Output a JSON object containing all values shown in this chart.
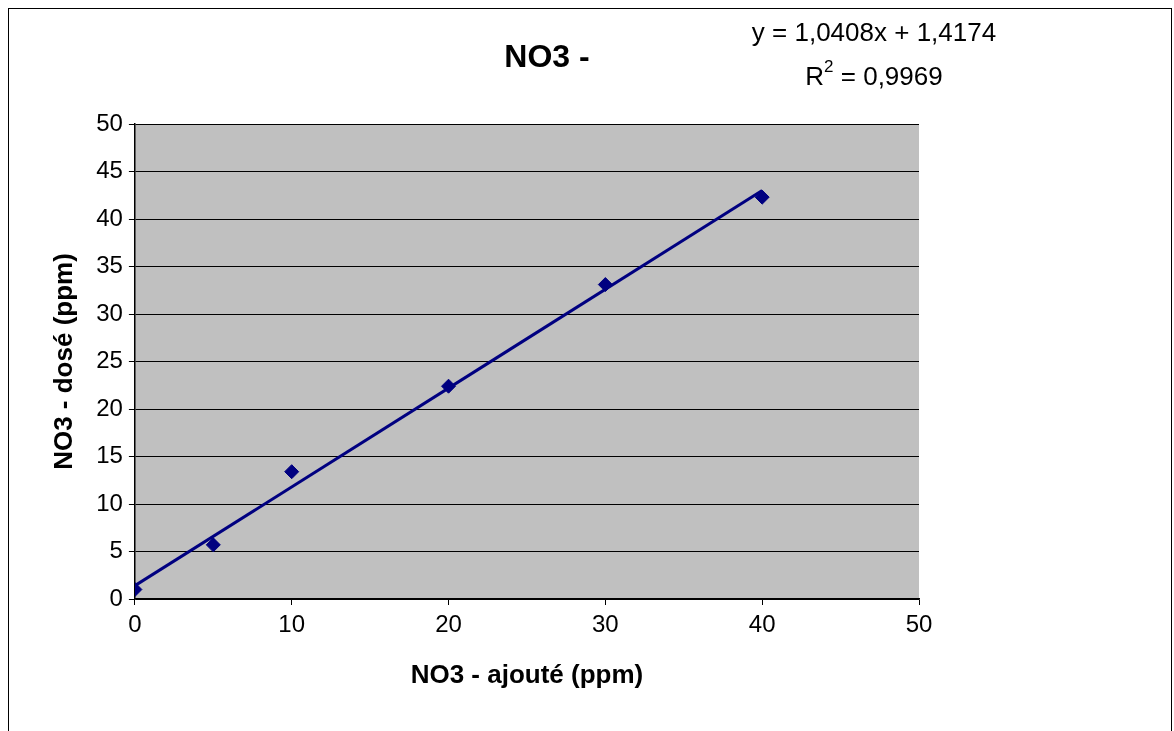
{
  "chart_data": {
    "type": "scatter",
    "title": "NO3 -",
    "xlabel": "NO3 - ajouté (ppm)",
    "ylabel": "NO3 - dosé (ppm)",
    "x": [
      0,
      5,
      10,
      20,
      30,
      40
    ],
    "series": [
      {
        "type": "scatter",
        "color": "#000080",
        "values": [
          1.0,
          5.7,
          13.4,
          22.4,
          33.1,
          42.3
        ]
      },
      {
        "type": "line",
        "color": "#000080",
        "x": [
          0,
          40
        ],
        "values": [
          1.4,
          43.0
        ],
        "marker": "none"
      }
    ],
    "annotations": [
      "y = 1,0408x + 1,4174",
      "R$^{2}$ = 0,9969"
    ],
    "xlim": [
      0,
      50
    ],
    "xticks": [
      0,
      10,
      20,
      30,
      40,
      50
    ],
    "ylim": [
      0,
      50
    ],
    "yticks": [
      0,
      5,
      10,
      15,
      20,
      25,
      30,
      35,
      40,
      45,
      50
    ],
    "grid": "y",
    "legend": false,
    "marker": "diamond"
  }
}
